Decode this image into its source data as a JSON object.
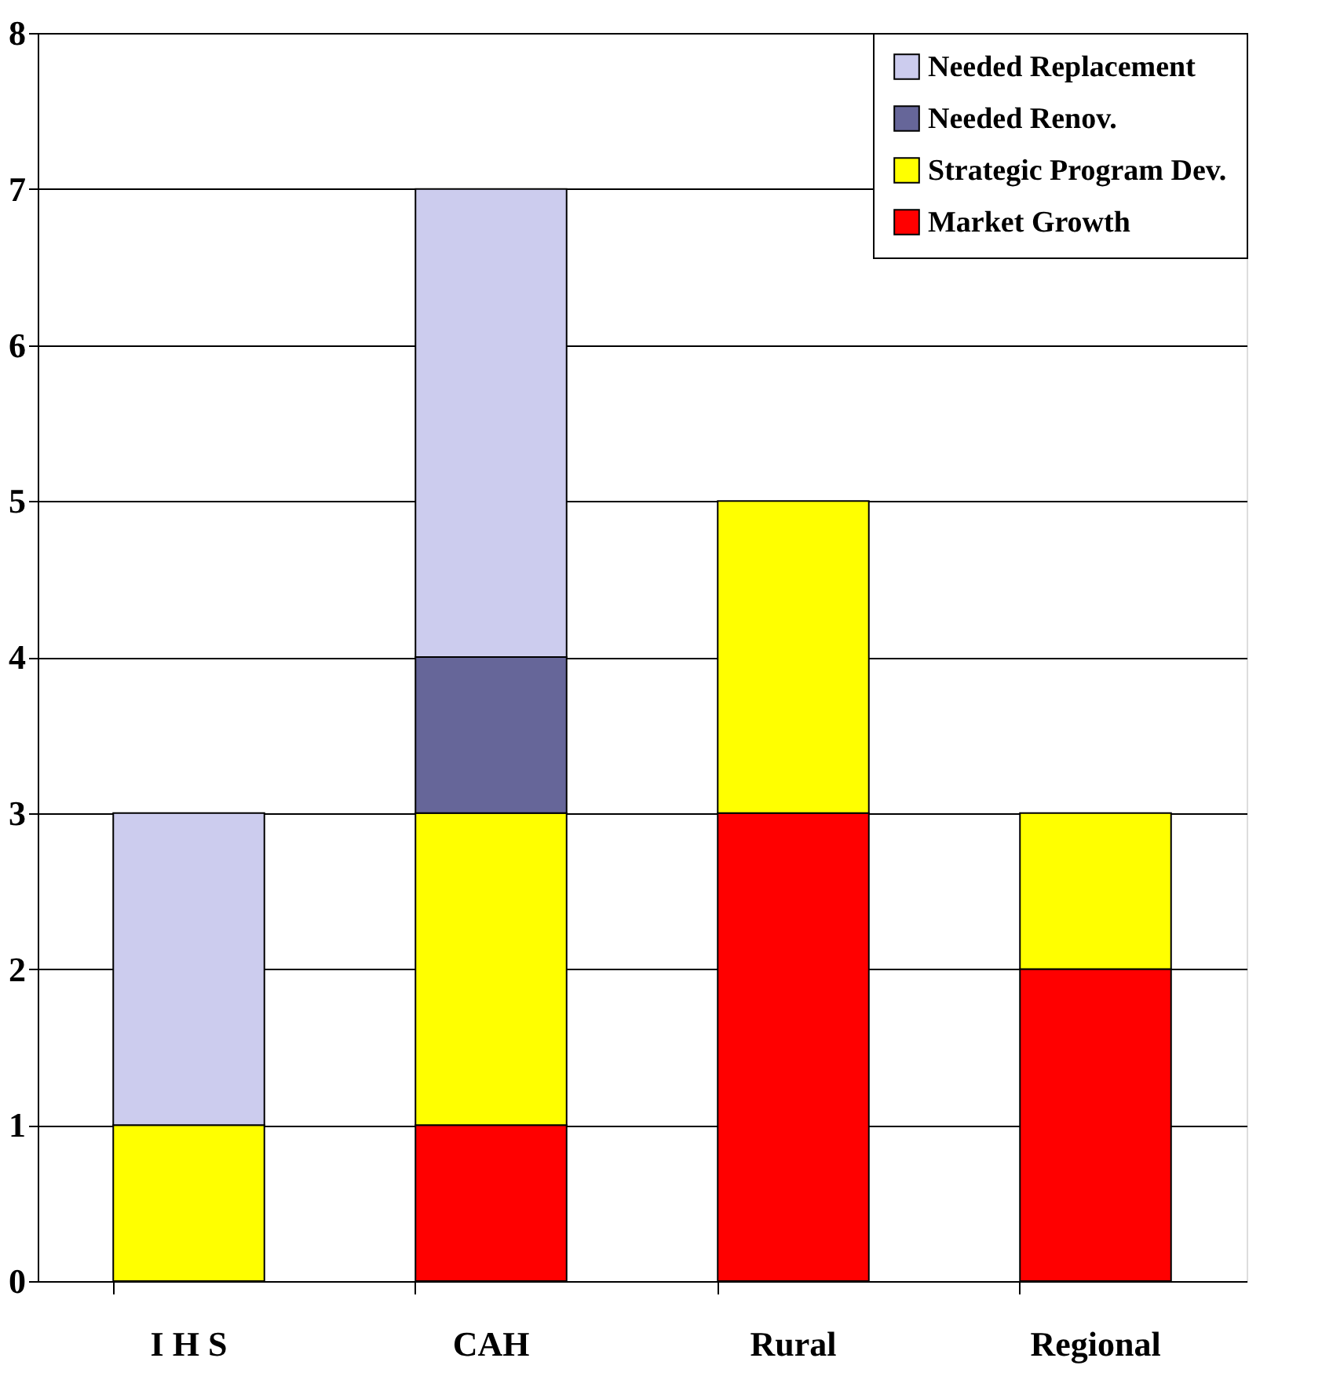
{
  "chart_data": {
    "type": "bar",
    "stacked": true,
    "categories": [
      "I H S",
      "CAH",
      "Rural",
      "Regional"
    ],
    "series": [
      {
        "name": "Market Growth",
        "color": "#ff0000",
        "values": [
          0,
          1,
          3,
          2
        ]
      },
      {
        "name": "Strategic Program Dev.",
        "color": "#ffff00",
        "values": [
          1,
          2,
          2,
          1
        ]
      },
      {
        "name": "Needed Renov.",
        "color": "#666699",
        "values": [
          0,
          1,
          0,
          0
        ]
      },
      {
        "name": "Needed Replacement",
        "color": "#ccccee",
        "values": [
          2,
          3,
          0,
          0
        ]
      }
    ],
    "ylim": [
      0,
      8
    ],
    "yticks": [
      0,
      1,
      2,
      3,
      4,
      5,
      6,
      7,
      8
    ],
    "grid": "y",
    "legend": "top right"
  }
}
